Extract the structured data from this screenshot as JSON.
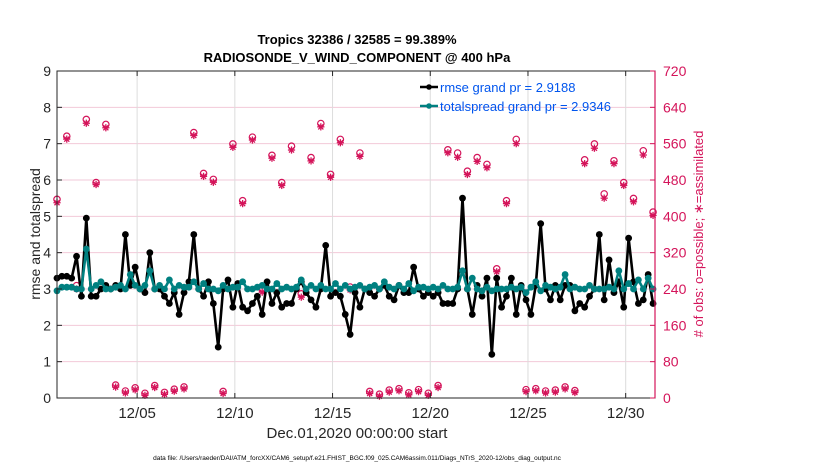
{
  "chart_data": {
    "type": "line",
    "title": "Tropics 32386 / 32585 = 99.389%",
    "subtitle": "RADIOSONDE_V_WIND_COMPONENT @ 400 hPa",
    "xlabel": "Dec.01,2020 00:00:00 start",
    "ylabel": "rmse and totalspread",
    "y2label": "# of obs: o=possible; ∗=assimilated",
    "footnote": "data file: /Users/raeder/DAI/ATM_forcXX/CAM6_setup/f.e21.FHIST_BGC.f09_025.CAM6assim.011/Diags_NTrS_2020-12/obs_diag_output.nc",
    "grid": true,
    "legend_position": "top-right",
    "xlim_days": [
      0.9,
      31.5
    ],
    "ylim": [
      0,
      9
    ],
    "y2lim": [
      0,
      720
    ],
    "x_tick_labels": [
      "12/05",
      "12/10",
      "12/15",
      "12/20",
      "12/25",
      "12/30"
    ],
    "x_tick_days": [
      5,
      10,
      15,
      20,
      25,
      30
    ],
    "y_tick_labels": [
      "0",
      "1",
      "2",
      "3",
      "4",
      "5",
      "6",
      "7",
      "8",
      "9"
    ],
    "y2_tick_labels": [
      "0",
      "80",
      "160",
      "240",
      "320",
      "400",
      "480",
      "560",
      "640",
      "720"
    ],
    "colors": {
      "rmse": "#000000",
      "totalspread": "#008080",
      "obs": "#d4145a",
      "legend_text": "#0055ee"
    },
    "series": [
      {
        "name": "rmse grand pr = 2.9188",
        "key": "rmse",
        "x_start_day": 0.9,
        "x_step_day": 0.25,
        "values": [
          3.3,
          3.35,
          3.35,
          3.3,
          3.9,
          2.8,
          4.95,
          2.8,
          2.8,
          3.0,
          3.1,
          3.0,
          3.1,
          3.0,
          4.5,
          3.1,
          3.6,
          3.0,
          2.9,
          4.0,
          3.0,
          3.0,
          2.8,
          2.6,
          2.9,
          2.3,
          2.9,
          3.2,
          4.5,
          3.0,
          2.8,
          3.2,
          2.6,
          1.4,
          3.0,
          3.25,
          2.5,
          3.15,
          2.5,
          2.4,
          2.6,
          2.8,
          2.3,
          3.2,
          2.6,
          2.9,
          2.5,
          2.6,
          2.6,
          3.0,
          3.2,
          2.9,
          2.7,
          2.5,
          3.0,
          4.2,
          2.8,
          2.9,
          2.8,
          2.3,
          1.75,
          2.9,
          2.5,
          3.0,
          2.9,
          2.8,
          3.0,
          3.1,
          2.8,
          2.7,
          3.1,
          2.9,
          2.9,
          3.6,
          3.0,
          2.8,
          2.9,
          2.8,
          2.9,
          2.6,
          2.6,
          2.6,
          3.0,
          5.5,
          3.0,
          2.3,
          3.1,
          2.8,
          3.3,
          1.2,
          3.3,
          2.5,
          2.8,
          3.3,
          2.3,
          3.1,
          2.7,
          2.3,
          3.1,
          4.8,
          3.0,
          2.7,
          3.1,
          2.7,
          3.1,
          3.1,
          2.4,
          2.6,
          2.5,
          2.8,
          3.0,
          4.5,
          2.7,
          3.8,
          2.9,
          3.2,
          2.5,
          4.4,
          3.2,
          2.6,
          2.7,
          3.4,
          2.6,
          2.5,
          3.2,
          3.4,
          3.1,
          3.5,
          3.0,
          3.6,
          2.8,
          3.9,
          3.0,
          4.6
        ]
      },
      {
        "name": "totalspread grand pr = 2.9346",
        "key": "totalspread",
        "x_start_day": 0.9,
        "x_step_day": 0.25,
        "values": [
          2.95,
          3.05,
          3.05,
          3.05,
          3.0,
          3.0,
          4.1,
          3.0,
          3.1,
          3.2,
          3.0,
          3.0,
          3.05,
          3.1,
          3.0,
          3.4,
          3.1,
          3.0,
          3.1,
          3.5,
          3.0,
          3.1,
          3.0,
          3.25,
          3.0,
          3.1,
          3.05,
          3.05,
          3.2,
          3.0,
          3.15,
          3.0,
          3.0,
          2.95,
          3.1,
          3.0,
          3.05,
          3.05,
          3.2,
          3.0,
          3.0,
          3.05,
          3.1,
          3.0,
          3.0,
          3.15,
          3.0,
          3.05,
          3.0,
          3.05,
          3.25,
          3.0,
          3.1,
          3.0,
          3.1,
          3.0,
          3.0,
          3.15,
          3.0,
          3.1,
          3.0,
          3.05,
          3.1,
          3.0,
          3.05,
          3.1,
          3.0,
          3.2,
          3.05,
          3.0,
          3.1,
          3.0,
          3.15,
          2.95,
          3.05,
          3.05,
          3.0,
          3.05,
          3.0,
          3.1,
          3.0,
          3.0,
          3.05,
          3.5,
          3.0,
          3.3,
          3.0,
          2.95,
          3.05,
          2.95,
          3.0,
          3.0,
          3.0,
          3.05,
          3.0,
          3.05,
          2.9,
          3.05,
          3.2,
          2.95,
          3.1,
          3.05,
          3.0,
          3.05,
          3.4,
          3.0,
          3.05,
          3.0,
          3.0,
          3.1,
          3.0,
          3.0,
          3.0,
          3.05,
          3.0,
          3.5,
          3.0,
          3.15,
          3.0,
          3.25,
          3.0,
          3.3,
          3.0,
          3.05,
          3.05,
          3.0,
          3.0,
          3.1,
          3.0,
          3.4,
          3.0,
          3.5,
          3.0,
          3.45
        ]
      }
    ],
    "obs_counts": {
      "x_start_day": 0.9,
      "x_step_day": 0.5,
      "possible": [
        433,
        572,
        243,
        609,
        470,
        598,
        24,
        11,
        18,
        6,
        23,
        8,
        15,
        20,
        580,
        490,
        477,
        10,
        555,
        430,
        570,
        235,
        530,
        470,
        550,
        225,
        525,
        600,
        488,
        565,
        240,
        535,
        10,
        4,
        13,
        16,
        7,
        14,
        6,
        23,
        542,
        535,
        495,
        525,
        510,
        280,
        430,
        565,
        14,
        16,
        11,
        13,
        20,
        12,
        520,
        555,
        445,
        518,
        470,
        435,
        540,
        405,
        590,
        560,
        455,
        590,
        585,
        415,
        24,
        10,
        8,
        4,
        18,
        17,
        8,
        24,
        550,
        520,
        475,
        555,
        580,
        440,
        535,
        463,
        480,
        585,
        535,
        460,
        12,
        20,
        31,
        40,
        16,
        6,
        27,
        9,
        550,
        535,
        440,
        595,
        480,
        430,
        450,
        360,
        425,
        470,
        410,
        500,
        515,
        472,
        540,
        480,
        420,
        510
      ],
      "assimilated": [
        430,
        570,
        240,
        605,
        470,
        595,
        24,
        11,
        18,
        6,
        23,
        8,
        15,
        20,
        578,
        488,
        475,
        10,
        552,
        428,
        568,
        233,
        528,
        468,
        546,
        222,
        522,
        597,
        486,
        562,
        238,
        532,
        10,
        4,
        13,
        16,
        7,
        14,
        6,
        23,
        540,
        530,
        492,
        521,
        507,
        278,
        428,
        560,
        14,
        16,
        11,
        13,
        20,
        12,
        516,
        550,
        440,
        516,
        468,
        432,
        535,
        402,
        588,
        558,
        452,
        588,
        582,
        412,
        24,
        10,
        8,
        4,
        18,
        17,
        8,
        24,
        545,
        517,
        472,
        552,
        578,
        437,
        532,
        460,
        478,
        582,
        533,
        457,
        12,
        20,
        31,
        38,
        16,
        6,
        27,
        9,
        546,
        532,
        436,
        592,
        476,
        428,
        447,
        357,
        422,
        468,
        407,
        497,
        512,
        470,
        538,
        477,
        417,
        508
      ]
    }
  }
}
